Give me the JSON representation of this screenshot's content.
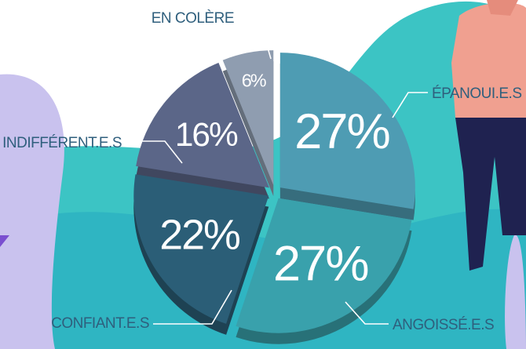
{
  "chart_data": {
    "type": "pie",
    "categories": [
      "ÉPANOUI.E.S",
      "ANGOISSÉ.E.S",
      "CONFIANT.E.S",
      "INDIFFÉRENT.E.S",
      "EN COLÈRE"
    ],
    "values": [
      27,
      27,
      22,
      16,
      6
    ],
    "value_labels": [
      "27%",
      "27%",
      "22%",
      "16%",
      "6%"
    ],
    "colors": [
      "#4e9cb3",
      "#39a1ac",
      "#2b5e77",
      "#5b6688",
      "#8f9db0"
    ]
  }
}
